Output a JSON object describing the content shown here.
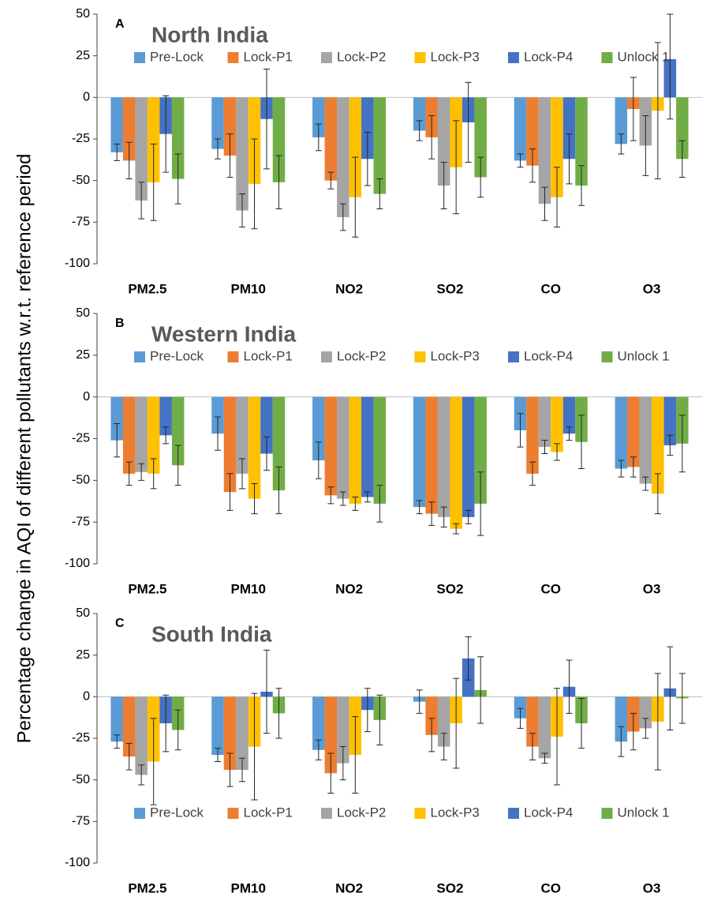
{
  "ylabel": "Percentage change in AQI of different pollutants w.r.t. reference period",
  "chart_data": [
    {
      "type": "bar",
      "panel_label": "A",
      "title": "North India",
      "legend_position": "top",
      "categories": [
        "PM2.5",
        "PM10",
        "NO2",
        "SO2",
        "CO",
        "O3"
      ],
      "ylim": [
        -100,
        50
      ],
      "yticks": [
        50,
        25,
        0,
        -25,
        -50,
        -75,
        -100
      ],
      "series": [
        {
          "name": "Pre-Lock",
          "color": "#5b9bd5",
          "values": [
            -33,
            -31,
            -24,
            -20,
            -38,
            -28
          ],
          "errors": [
            5,
            6,
            8,
            6,
            4,
            6
          ]
        },
        {
          "name": "Lock-P1",
          "color": "#ed7d31",
          "values": [
            -38,
            -35,
            -50,
            -24,
            -41,
            -7
          ],
          "errors": [
            11,
            13,
            5,
            13,
            10,
            19
          ]
        },
        {
          "name": "Lock-P2",
          "color": "#a5a5a5",
          "values": [
            -62,
            -68,
            -72,
            -53,
            -64,
            -29
          ],
          "errors": [
            11,
            10,
            8,
            14,
            10,
            18
          ]
        },
        {
          "name": "Lock-P3",
          "color": "#ffc000",
          "values": [
            -51,
            -52,
            -60,
            -42,
            -60,
            -8
          ],
          "errors": [
            23,
            27,
            24,
            28,
            18,
            41
          ]
        },
        {
          "name": "Lock-P4",
          "color": "#4472c4",
          "values": [
            -22,
            -13,
            -37,
            -15,
            -37,
            23
          ],
          "errors": [
            23,
            30,
            16,
            24,
            15,
            36
          ]
        },
        {
          "name": "Unlock 1",
          "color": "#70ad47",
          "values": [
            -49,
            -51,
            -58,
            -48,
            -53,
            -37
          ],
          "errors": [
            15,
            16,
            9,
            12,
            12,
            11
          ]
        }
      ]
    },
    {
      "type": "bar",
      "panel_label": "B",
      "title": "Western India",
      "legend_position": "top",
      "categories": [
        "PM2.5",
        "PM10",
        "NO2",
        "SO2",
        "CO",
        "O3"
      ],
      "ylim": [
        -100,
        50
      ],
      "yticks": [
        50,
        25,
        0,
        -25,
        -50,
        -75,
        -100
      ],
      "series": [
        {
          "name": "Pre-Lock",
          "color": "#5b9bd5",
          "values": [
            -26,
            -22,
            -38,
            -66,
            -20,
            -43
          ],
          "errors": [
            10,
            10,
            11,
            4,
            10,
            5
          ]
        },
        {
          "name": "Lock-P1",
          "color": "#ed7d31",
          "values": [
            -46,
            -57,
            -59,
            -70,
            -46,
            -42
          ],
          "errors": [
            7,
            11,
            5,
            7,
            7,
            6
          ]
        },
        {
          "name": "Lock-P2",
          "color": "#a5a5a5",
          "values": [
            -45,
            -46,
            -61,
            -72,
            -30,
            -52
          ],
          "errors": [
            5,
            9,
            4,
            6,
            4,
            4
          ]
        },
        {
          "name": "Lock-P3",
          "color": "#ffc000",
          "values": [
            -46,
            -61,
            -64,
            -79,
            -33,
            -58
          ],
          "errors": [
            9,
            9,
            4,
            3,
            5,
            12
          ]
        },
        {
          "name": "Lock-P4",
          "color": "#4472c4",
          "values": [
            -23,
            -34,
            -60,
            -72,
            -22,
            -29
          ],
          "errors": [
            5,
            10,
            3,
            4,
            4,
            6
          ]
        },
        {
          "name": "Unlock 1",
          "color": "#70ad47",
          "values": [
            -41,
            -56,
            -64,
            -64,
            -27,
            -28
          ],
          "errors": [
            12,
            14,
            11,
            19,
            16,
            17
          ]
        }
      ]
    },
    {
      "type": "bar",
      "panel_label": "C",
      "title": "South India",
      "legend_position": "bottom",
      "categories": [
        "PM2.5",
        "PM10",
        "NO2",
        "SO2",
        "CO",
        "O3"
      ],
      "ylim": [
        -100,
        50
      ],
      "yticks": [
        50,
        25,
        0,
        -25,
        -50,
        -75,
        -100
      ],
      "series": [
        {
          "name": "Pre-Lock",
          "color": "#5b9bd5",
          "values": [
            -27,
            -35,
            -32,
            -3,
            -13,
            -27
          ],
          "errors": [
            4,
            4,
            6,
            7,
            6,
            9
          ]
        },
        {
          "name": "Lock-P1",
          "color": "#ed7d31",
          "values": [
            -36,
            -44,
            -46,
            -23,
            -30,
            -21
          ],
          "errors": [
            8,
            10,
            12,
            10,
            8,
            11
          ]
        },
        {
          "name": "Lock-P2",
          "color": "#a5a5a5",
          "values": [
            -47,
            -44,
            -40,
            -30,
            -37,
            -19
          ],
          "errors": [
            6,
            7,
            10,
            8,
            3,
            6
          ]
        },
        {
          "name": "Lock-P3",
          "color": "#ffc000",
          "values": [
            -39,
            -30,
            -35,
            -16,
            -24,
            -15
          ],
          "errors": [
            26,
            32,
            23,
            27,
            29,
            29
          ]
        },
        {
          "name": "Lock-P4",
          "color": "#4472c4",
          "values": [
            -16,
            3,
            -8,
            23,
            6,
            5
          ],
          "errors": [
            17,
            25,
            13,
            13,
            16,
            25
          ]
        },
        {
          "name": "Unlock 1",
          "color": "#70ad47",
          "values": [
            -20,
            -10,
            -14,
            4,
            -16,
            -1
          ],
          "errors": [
            12,
            15,
            15,
            20,
            15,
            15
          ]
        }
      ]
    }
  ]
}
